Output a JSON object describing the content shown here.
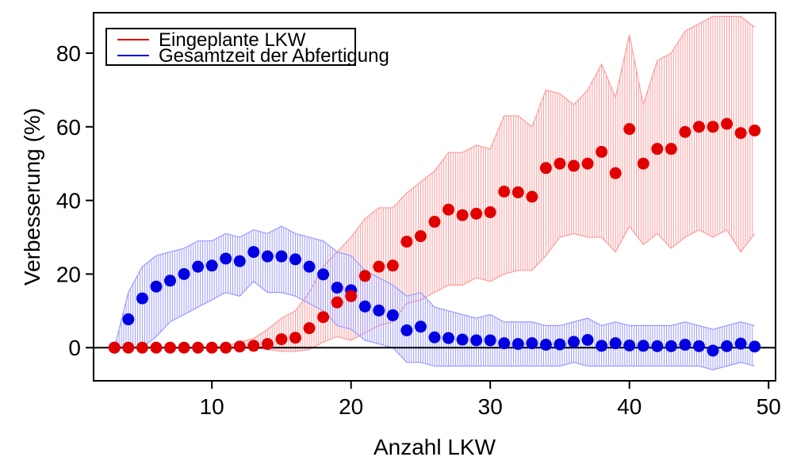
{
  "chart_data": {
    "type": "scatter",
    "xlabel": "Anzahl LKW",
    "ylabel": "Verbesserung (%)",
    "xlim": [
      1.5,
      50.5
    ],
    "ylim": [
      -9,
      91
    ],
    "xticks": [
      10,
      20,
      30,
      40,
      50
    ],
    "yticks": [
      0,
      20,
      40,
      60,
      80
    ],
    "reference_line_y": 0,
    "legend_position": "top-left",
    "x": [
      3,
      4,
      5,
      6,
      7,
      8,
      9,
      10,
      11,
      12,
      13,
      14,
      15,
      16,
      17,
      18,
      19,
      20,
      21,
      22,
      23,
      24,
      25,
      26,
      27,
      28,
      29,
      30,
      31,
      32,
      33,
      34,
      35,
      36,
      37,
      38,
      39,
      40,
      41,
      42,
      43,
      44,
      45,
      46,
      47,
      48,
      49
    ],
    "series": [
      {
        "name": "Eingeplante LKW",
        "color": "#e00000",
        "band_color": "#ff9a9a",
        "mean": [
          0,
          0,
          0,
          0,
          0,
          0,
          0,
          0,
          0,
          0.3,
          0.5,
          1,
          2.3,
          2.7,
          5.3,
          8.3,
          12.3,
          14,
          19.5,
          22,
          22.3,
          28.8,
          30.3,
          34.2,
          37.5,
          36,
          36.4,
          36.8,
          42.4,
          42.2,
          41,
          48.8,
          50,
          49.4,
          50,
          53.2,
          47.4,
          59.4,
          50,
          54,
          54,
          58.6,
          60,
          60,
          60.8,
          58.3,
          59
        ],
        "lower": [
          0,
          0,
          0,
          0,
          0,
          0,
          0,
          0,
          0,
          0,
          0,
          -0.5,
          -1,
          -1,
          -0.5,
          1.5,
          3,
          2,
          4,
          6,
          7,
          12,
          13,
          15,
          17,
          17,
          19,
          18,
          20,
          21,
          21,
          25,
          30,
          31,
          30,
          30,
          26,
          33,
          28,
          31,
          27,
          30,
          32,
          30,
          32,
          26,
          31
        ],
        "upper": [
          0,
          0,
          0,
          0,
          0,
          0,
          0,
          0,
          0.5,
          1.5,
          2.5,
          5,
          8,
          10,
          15,
          22,
          26,
          30,
          35,
          38,
          38,
          42,
          45,
          48,
          53,
          53,
          55,
          54,
          63,
          63,
          60,
          70,
          69,
          66,
          70,
          77,
          68,
          85,
          66,
          78,
          80,
          86,
          88,
          90,
          90,
          90,
          87
        ]
      },
      {
        "name": "Gesamtzeit der Abfertigung",
        "color": "#0000e0",
        "band_color": "#9a9aff",
        "mean": [
          0,
          7.7,
          13.4,
          16.6,
          18.2,
          20,
          22,
          22.3,
          24.2,
          23.5,
          26,
          24.8,
          24.8,
          24,
          22,
          19.9,
          16.3,
          15.6,
          11.2,
          10.1,
          8.8,
          4.7,
          5.7,
          2.8,
          2.6,
          2.2,
          2,
          2,
          1.2,
          1,
          1.2,
          0.8,
          0.9,
          1.6,
          2.1,
          0.5,
          1.2,
          0.6,
          0.5,
          0.4,
          0.4,
          0.8,
          0.4,
          -0.8,
          0.4,
          1.1,
          0.3
        ],
        "lower": [
          0,
          0,
          0,
          3,
          7,
          9,
          11,
          13,
          15,
          14,
          18,
          15,
          15,
          14,
          12,
          10,
          6,
          5,
          2,
          1,
          0,
          -4,
          -4,
          -5,
          -5,
          -5,
          -5,
          -5,
          -5,
          -5,
          -5,
          -5,
          -5,
          -4,
          -5,
          -5,
          -5,
          -5,
          -5,
          -5,
          -5,
          -5,
          -5,
          -6,
          -5,
          -4,
          -5
        ],
        "upper": [
          0,
          15,
          22,
          25,
          26,
          27,
          29,
          29,
          31,
          30,
          32,
          31,
          33,
          31,
          30,
          29,
          26,
          25,
          21,
          19,
          17,
          14,
          15,
          11,
          10,
          9,
          8,
          9,
          7,
          7,
          7,
          6,
          6,
          7,
          8,
          6,
          7,
          6,
          6,
          6,
          6,
          7,
          6,
          5,
          6,
          7,
          6
        ]
      }
    ]
  }
}
